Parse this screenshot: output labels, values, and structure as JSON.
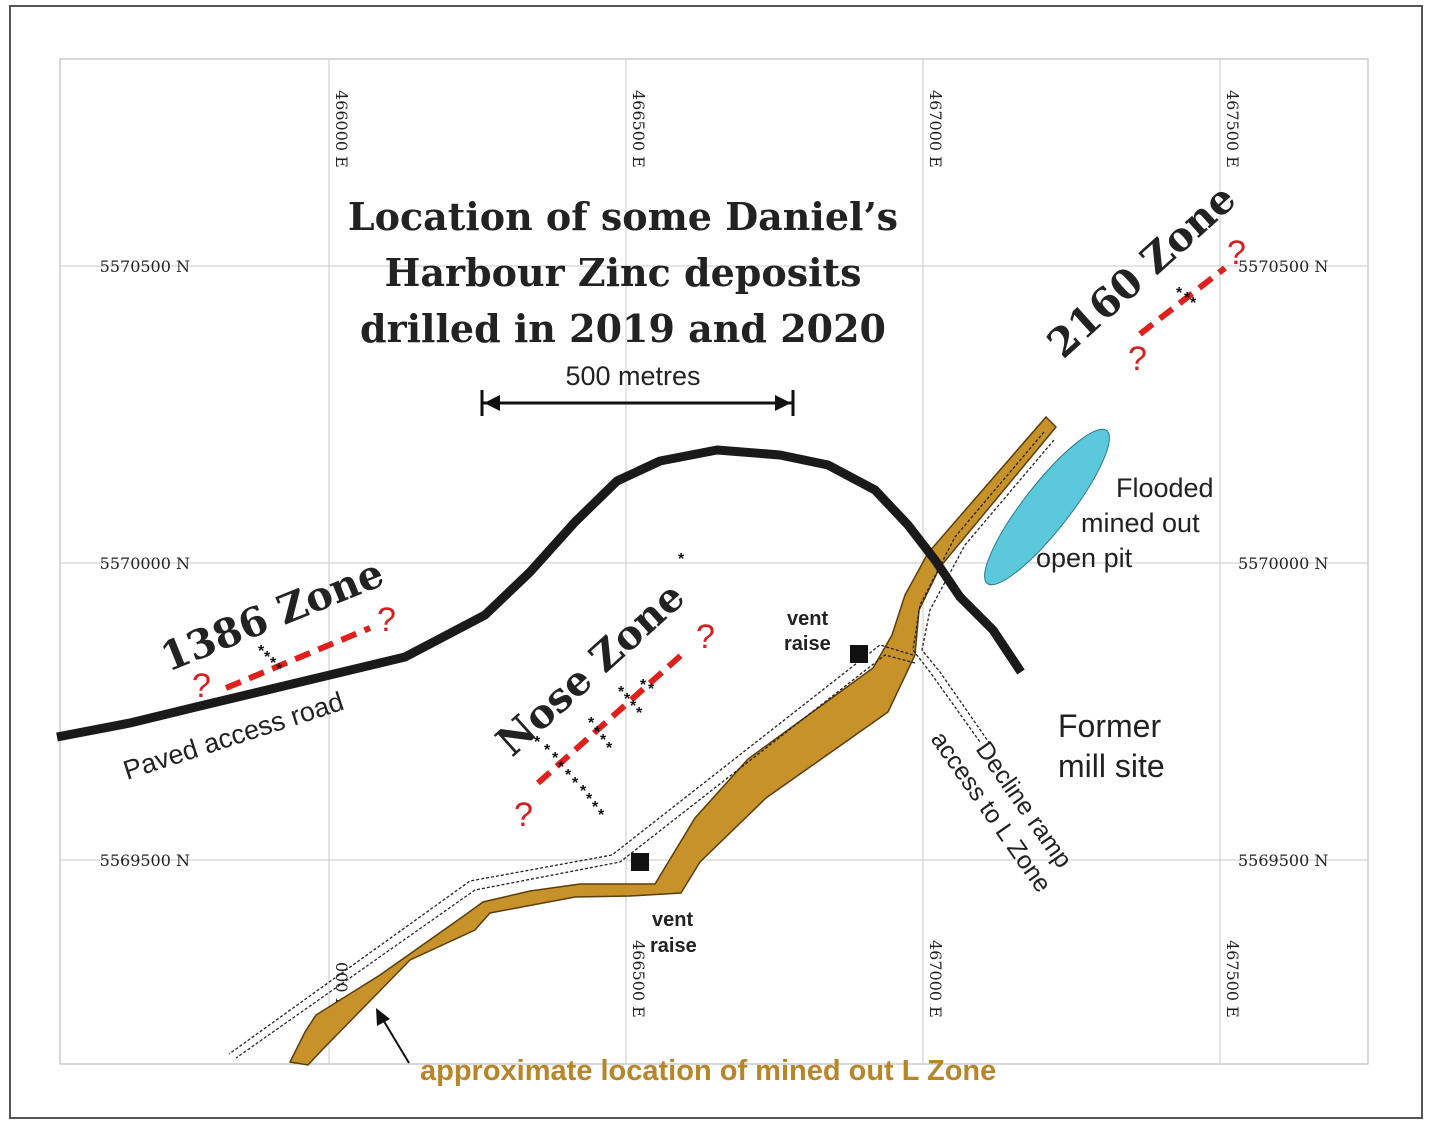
{
  "title": {
    "line1": "Location of some Daniel’s",
    "line2": "Harbour Zinc deposits",
    "line3": "drilled in 2019 and 2020"
  },
  "grid": {
    "eastings": [
      {
        "value": 466000,
        "label": "466000 E"
      },
      {
        "value": 466500,
        "label": "466500 E"
      },
      {
        "value": 467000,
        "label": "467000 E"
      },
      {
        "value": 467500,
        "label": "467500 E"
      }
    ],
    "eastings_bottom": [
      {
        "value": 466000,
        "label": "000 E"
      },
      {
        "value": 466500,
        "label": "466500 E"
      },
      {
        "value": 467000,
        "label": "467000 E"
      },
      {
        "value": 467500,
        "label": "467500 E"
      }
    ],
    "northings": [
      {
        "value": 5570500,
        "label": "5570500 N"
      },
      {
        "value": 5570000,
        "label": "5570000 N"
      },
      {
        "value": 5569500,
        "label": "5569500 N"
      }
    ]
  },
  "scale_bar": {
    "label": "500 metres",
    "length_m": 500
  },
  "zones": {
    "zone_1386": "1386 Zone",
    "nose": "Nose Zone",
    "zone_2160": "2160 Zone"
  },
  "uncertain_marker": "?",
  "labels": {
    "paved_road": "Paved access road",
    "flooded_pit_1": "Flooded",
    "flooded_pit_2": "mined out",
    "flooded_pit_3": "open pit",
    "mill_1": "Former",
    "mill_2": "mill site",
    "vent_1a": "vent",
    "vent_1b": "raise",
    "vent_2a": "vent",
    "vent_2b": "raise",
    "decline_1": "Decline ramp",
    "decline_2": "access to L Zone",
    "l_zone": "approximate location of mined out L Zone"
  },
  "colors": {
    "road": "#1a1a1a",
    "l_zone": "#c8922b",
    "l_zone_text": "#b8862a",
    "pit": "#5bc8dc",
    "trend": "#e0201c",
    "question": "#d42020",
    "grid": "#c8c8c8"
  }
}
